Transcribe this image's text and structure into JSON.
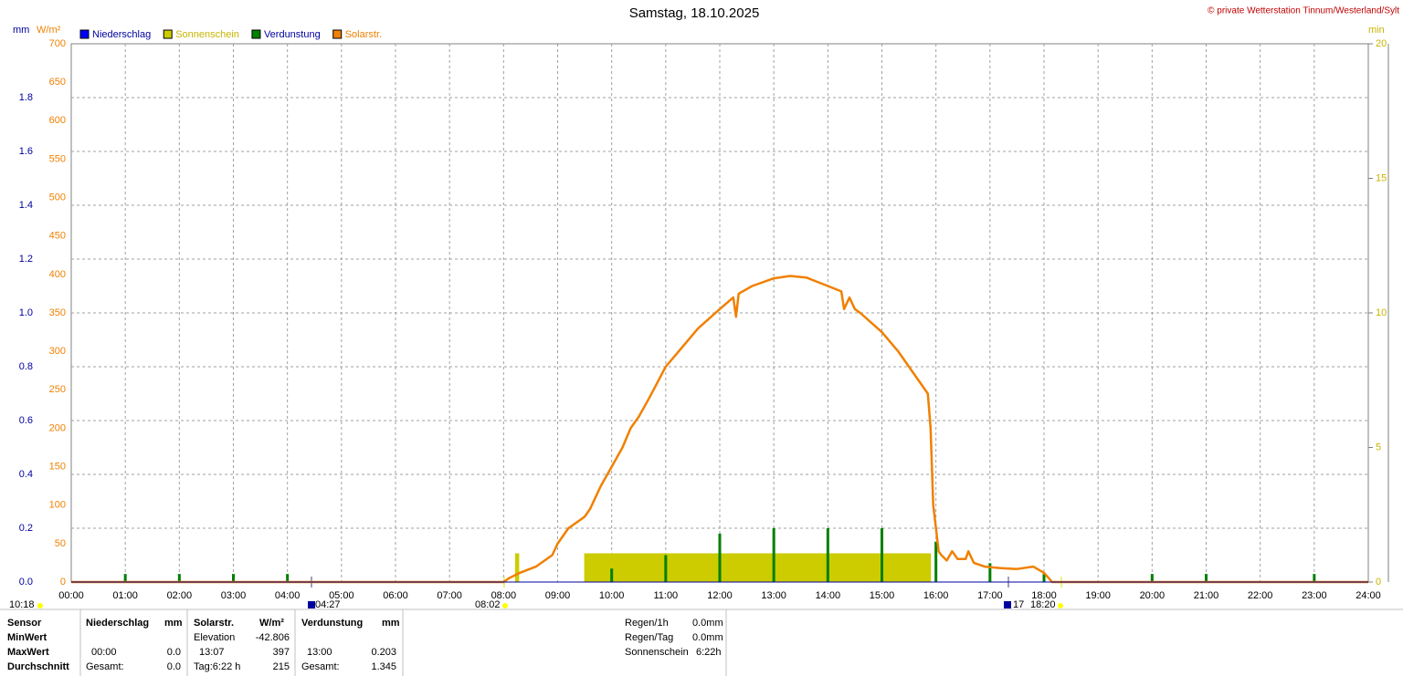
{
  "chart_data": {
    "type": "line",
    "title": "Samstag, 18.10.2025",
    "credit": "© private Wetterstation Tinnum/Westerland/Sylt",
    "y_unit": "mm",
    "y2_unit": "W/m²",
    "y3_unit": "min",
    "xlim": [
      0,
      24
    ],
    "xticks": [
      {
        "value": 0,
        "label": "00:00"
      },
      {
        "value": 1,
        "label": "01:00"
      },
      {
        "value": 2,
        "label": "02:00"
      },
      {
        "value": 3,
        "label": "03:00"
      },
      {
        "value": 4,
        "label": "04:00"
      },
      {
        "value": 5,
        "label": "05:00"
      },
      {
        "value": 6,
        "label": "06:00"
      },
      {
        "value": 7,
        "label": "07:00"
      },
      {
        "value": 8,
        "label": "08:00"
      },
      {
        "value": 9,
        "label": "09:00"
      },
      {
        "value": 10,
        "label": "10:00"
      },
      {
        "value": 11,
        "label": "11:00"
      },
      {
        "value": 12,
        "label": "12:00"
      },
      {
        "value": 13,
        "label": "13:00"
      },
      {
        "value": 14,
        "label": "14:00"
      },
      {
        "value": 15,
        "label": "15:00"
      },
      {
        "value": 16,
        "label": "16:00"
      },
      {
        "value": 17,
        "label": "17:00"
      },
      {
        "value": 18,
        "label": "18:00"
      },
      {
        "value": 19,
        "label": "19:00"
      },
      {
        "value": 20,
        "label": "20:00"
      },
      {
        "value": 21,
        "label": "21:00"
      },
      {
        "value": 22,
        "label": "22:00"
      },
      {
        "value": 23,
        "label": "23:00"
      },
      {
        "value": 24,
        "label": "24:00"
      }
    ],
    "ylim": [
      0,
      2
    ],
    "yticks": [
      {
        "value": 0,
        "label": "0.0"
      },
      0.2,
      0.4,
      0.6,
      0.8,
      {
        "value": 1,
        "label": "1.0"
      },
      1.2,
      1.4,
      1.6,
      1.8
    ],
    "y2lim": [
      0,
      700
    ],
    "y2ticks": [
      0,
      50,
      100,
      150,
      200,
      250,
      300,
      350,
      400,
      450,
      500,
      550,
      600,
      650,
      700
    ],
    "y3lim": [
      0,
      20
    ],
    "y3ticks": [
      0,
      5,
      10,
      15,
      20
    ],
    "grid": true,
    "series": [
      {
        "name": "Niederschlag",
        "color": "#0000ff",
        "kind": "bar",
        "axis": "y",
        "x": [],
        "values": []
      },
      {
        "name": "Sonnenschein",
        "color": "#cccc00",
        "kind": "span",
        "axis": "y3",
        "x_start": [
          8.22,
          9.5
        ],
        "x_end": [
          8.28,
          15.9
        ],
        "values": [
          1.05,
          1.05
        ]
      },
      {
        "name": "Verdunstung",
        "color": "#008000",
        "kind": "bar",
        "axis": "y",
        "x": [
          1,
          2,
          3,
          4,
          10,
          11,
          12,
          13,
          14,
          15,
          16,
          17,
          18,
          20,
          21,
          23
        ],
        "values": [
          0.03,
          0.03,
          0.03,
          0.03,
          0.05,
          0.1,
          0.18,
          0.2,
          0.2,
          0.2,
          0.15,
          0.07,
          0.03,
          0.03,
          0.03,
          0.03
        ]
      },
      {
        "name": "Solarstr.",
        "color": "#f08000",
        "kind": "line",
        "axis": "y2",
        "x": [
          0,
          8.0,
          8.1,
          8.3,
          8.6,
          8.9,
          9.0,
          9.2,
          9.4,
          9.5,
          9.6,
          9.7,
          9.8,
          10.0,
          10.2,
          10.35,
          10.5,
          10.7,
          11.0,
          11.3,
          11.6,
          12.0,
          12.25,
          12.3,
          12.35,
          12.6,
          13.0,
          13.3,
          13.6,
          14.0,
          14.25,
          14.3,
          14.4,
          14.5,
          14.6,
          15.0,
          15.3,
          15.6,
          15.85,
          15.9,
          15.95,
          16.0,
          16.05,
          16.1,
          16.2,
          16.3,
          16.4,
          16.55,
          16.6,
          16.7,
          16.9,
          17.2,
          17.5,
          17.8,
          18.0,
          18.15,
          24
        ],
        "values": [
          0,
          0,
          5,
          12,
          20,
          35,
          50,
          70,
          80,
          85,
          95,
          110,
          125,
          150,
          175,
          200,
          215,
          240,
          280,
          305,
          330,
          355,
          370,
          345,
          375,
          385,
          395,
          398,
          396,
          385,
          378,
          355,
          370,
          355,
          350,
          325,
          300,
          270,
          245,
          200,
          100,
          70,
          40,
          35,
          28,
          40,
          30,
          30,
          40,
          25,
          20,
          18,
          17,
          20,
          12,
          0,
          0
        ]
      }
    ]
  },
  "events": [
    "10:18",
    "04:27",
    "08:02",
    "17",
    "18:20"
  ],
  "stats": {
    "headers": {
      "sensor": "Sensor",
      "rain": "Niederschlag",
      "rain_unit": "mm",
      "solar": "Solarstr.",
      "solar_unit": "W/m²",
      "evap": "Verdunstung",
      "evap_unit": "mm"
    },
    "row_labels": [
      "MinWert",
      "MaxWert",
      "Durchschnitt"
    ],
    "solar_min": [
      "Elevation",
      "-42.806"
    ],
    "rain_max": [
      "00:00",
      "0.0"
    ],
    "solar_max": [
      "13:07",
      "397"
    ],
    "evap_max": [
      "13:00",
      "0.203"
    ],
    "rain_avg": [
      "Gesamt:",
      "0.0"
    ],
    "solar_avg": [
      "Tag:6:22 h",
      "215"
    ],
    "evap_avg": [
      "Gesamt:",
      "1.345"
    ],
    "summary": [
      [
        "Regen/1h",
        "0.0mm"
      ],
      [
        "Regen/Tag",
        "0.0mm"
      ],
      [
        "Sonnenschein",
        "6:22h"
      ]
    ]
  }
}
